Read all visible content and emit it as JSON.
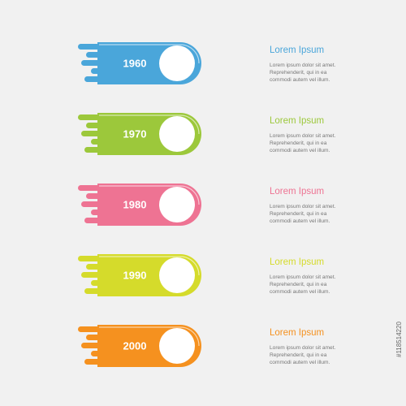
{
  "items": [
    {
      "year": "1960",
      "title": "Lorem Ipsum",
      "color": "#4aa6da",
      "lines": [
        "Lorem ipsum dolor sit amet.",
        "Reprehenderit, qui in ea",
        "commodi autem vel illum."
      ]
    },
    {
      "year": "1970",
      "title": "Lorem Ipsum",
      "color": "#9cc83b",
      "lines": [
        "Lorem ipsum dolor sit amet.",
        "Reprehenderit, qui in ea",
        "commodi autem vel illum."
      ]
    },
    {
      "year": "1980",
      "title": "Lorem Ipsum",
      "color": "#ee7393",
      "lines": [
        "Lorem ipsum dolor sit amet.",
        "Reprehenderit, qui in ea",
        "commodi autem vel illum."
      ]
    },
    {
      "year": "1990",
      "title": "Lorem Ipsum",
      "color": "#d5db2b",
      "lines": [
        "Lorem ipsum dolor sit amet.",
        "Reprehenderit, qui in ea",
        "commodi autem vel illum."
      ]
    },
    {
      "year": "2000",
      "title": "Lorem Ipsum",
      "color": "#f5911f",
      "lines": [
        "Lorem ipsum dolor sit amet.",
        "Reprehenderit, qui in ea",
        "commodi autem vel illum."
      ]
    }
  ],
  "stock_id": "#118514220"
}
